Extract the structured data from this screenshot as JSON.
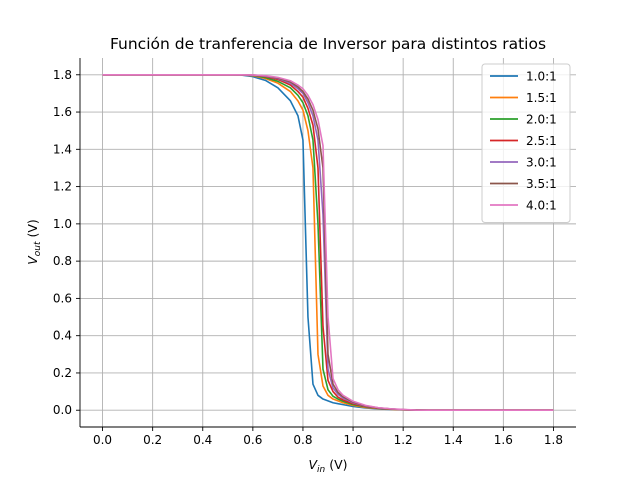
{
  "chart_data": {
    "type": "line",
    "title": "Función de tranferencia de Inversor para distintos ratios",
    "xlabel": {
      "base": "V",
      "sub": "in",
      "unit": " (V)"
    },
    "ylabel": {
      "base": "V",
      "sub": "out",
      "unit": " (V)"
    },
    "xlim": [
      -0.09,
      1.89
    ],
    "ylim": [
      -0.09,
      1.89
    ],
    "xticks": [
      0.0,
      0.2,
      0.4,
      0.6,
      0.8,
      1.0,
      1.2,
      1.4,
      1.6,
      1.8
    ],
    "yticks": [
      0.0,
      0.2,
      0.4,
      0.6,
      0.8,
      1.0,
      1.2,
      1.4,
      1.6,
      1.8
    ],
    "tick_labels": {
      "x": [
        "0.0",
        "0.2",
        "0.4",
        "0.6",
        "0.8",
        "1.0",
        "1.2",
        "1.4",
        "1.6",
        "1.8"
      ],
      "y": [
        "0.0",
        "0.2",
        "0.4",
        "0.6",
        "0.8",
        "1.0",
        "1.2",
        "1.4",
        "1.6",
        "1.8"
      ]
    },
    "grid": true,
    "legend_position": "top-right",
    "x": [
      0.0,
      0.1,
      0.2,
      0.3,
      0.4,
      0.5,
      0.55,
      0.6,
      0.65,
      0.7,
      0.75,
      0.78,
      0.8,
      0.82,
      0.84,
      0.86,
      0.88,
      0.9,
      0.92,
      0.94,
      0.96,
      1.0,
      1.05,
      1.1,
      1.15,
      1.2,
      1.25,
      1.3,
      1.4,
      1.5,
      1.6,
      1.7,
      1.8
    ],
    "series": [
      {
        "name": "1.0:1",
        "color": "#1f77b4",
        "values": [
          1.8,
          1.8,
          1.8,
          1.8,
          1.8,
          1.8,
          1.799,
          1.79,
          1.77,
          1.73,
          1.66,
          1.58,
          1.45,
          0.5,
          0.14,
          0.08,
          0.06,
          0.05,
          0.04,
          0.035,
          0.03,
          0.02,
          0.012,
          0.007,
          0.004,
          0.002,
          0.001,
          0.0,
          0.0,
          0.0,
          0.0,
          0.0,
          0.0
        ]
      },
      {
        "name": "1.5:1",
        "color": "#ff7f0e",
        "values": [
          1.8,
          1.8,
          1.8,
          1.8,
          1.8,
          1.8,
          1.8,
          1.795,
          1.78,
          1.755,
          1.71,
          1.66,
          1.61,
          1.5,
          1.3,
          0.3,
          0.13,
          0.08,
          0.06,
          0.05,
          0.04,
          0.026,
          0.015,
          0.009,
          0.005,
          0.002,
          0.001,
          0.0,
          0.0,
          0.0,
          0.0,
          0.0,
          0.0
        ]
      },
      {
        "name": "2.0:1",
        "color": "#2ca02c",
        "values": [
          1.8,
          1.8,
          1.8,
          1.8,
          1.8,
          1.8,
          1.8,
          1.797,
          1.785,
          1.765,
          1.73,
          1.69,
          1.65,
          1.58,
          1.45,
          1.0,
          0.22,
          0.11,
          0.075,
          0.06,
          0.048,
          0.03,
          0.018,
          0.01,
          0.006,
          0.003,
          0.001,
          0.0,
          0.0,
          0.0,
          0.0,
          0.0,
          0.0
        ]
      },
      {
        "name": "2.5:1",
        "color": "#d62728",
        "values": [
          1.8,
          1.8,
          1.8,
          1.8,
          1.8,
          1.8,
          1.8,
          1.798,
          1.79,
          1.775,
          1.745,
          1.71,
          1.68,
          1.62,
          1.53,
          1.3,
          0.45,
          0.16,
          0.1,
          0.07,
          0.055,
          0.035,
          0.02,
          0.011,
          0.006,
          0.003,
          0.001,
          0.0,
          0.0,
          0.0,
          0.0,
          0.0,
          0.0
        ]
      },
      {
        "name": "3.0:1",
        "color": "#9467bd",
        "values": [
          1.8,
          1.8,
          1.8,
          1.8,
          1.8,
          1.8,
          1.8,
          1.798,
          1.792,
          1.78,
          1.755,
          1.725,
          1.7,
          1.65,
          1.58,
          1.45,
          1.05,
          0.22,
          0.12,
          0.085,
          0.065,
          0.04,
          0.022,
          0.012,
          0.007,
          0.003,
          0.001,
          0.0,
          0.0,
          0.0,
          0.0,
          0.0,
          0.0
        ]
      },
      {
        "name": "3.5:1",
        "color": "#8c564b",
        "values": [
          1.8,
          1.8,
          1.8,
          1.8,
          1.8,
          1.8,
          1.8,
          1.799,
          1.794,
          1.783,
          1.762,
          1.735,
          1.71,
          1.67,
          1.61,
          1.51,
          1.3,
          0.3,
          0.14,
          0.095,
          0.072,
          0.044,
          0.024,
          0.013,
          0.007,
          0.003,
          0.001,
          0.0,
          0.0,
          0.0,
          0.0,
          0.0,
          0.0
        ]
      },
      {
        "name": "4.0:1",
        "color": "#e377c2",
        "values": [
          1.8,
          1.8,
          1.8,
          1.8,
          1.8,
          1.8,
          1.8,
          1.799,
          1.795,
          1.786,
          1.768,
          1.745,
          1.725,
          1.69,
          1.64,
          1.56,
          1.42,
          0.5,
          0.17,
          0.11,
          0.08,
          0.048,
          0.026,
          0.014,
          0.008,
          0.004,
          0.001,
          0.0,
          0.0,
          0.0,
          0.0,
          0.0,
          0.0
        ]
      }
    ]
  }
}
